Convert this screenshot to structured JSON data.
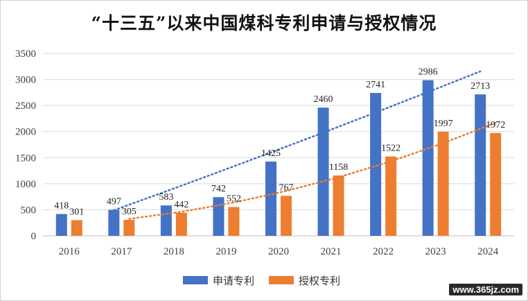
{
  "chart_data": {
    "type": "bar",
    "title": "“十三五”以来中国煤科专利申请与授权情况",
    "categories": [
      "2016",
      "2017",
      "2018",
      "2019",
      "2020",
      "2021",
      "2022",
      "2023",
      "2024"
    ],
    "series": [
      {
        "name": "申请专利",
        "color": "#4472C4",
        "values": [
          418,
          497,
          583,
          742,
          1425,
          2460,
          2741,
          2986,
          2713
        ]
      },
      {
        "name": "授权专利",
        "color": "#ED7D31",
        "values": [
          301,
          305,
          442,
          552,
          767,
          1158,
          1522,
          1997,
          1972
        ]
      }
    ],
    "trendlines": "dotted, per series",
    "yticks": [
      0,
      500,
      1000,
      1500,
      2000,
      2500,
      3000,
      3500
    ],
    "ylim": [
      0,
      3500
    ],
    "grid": true,
    "legend": "bottom",
    "xlabel": "",
    "ylabel": ""
  },
  "watermark": "www.365jz.com"
}
